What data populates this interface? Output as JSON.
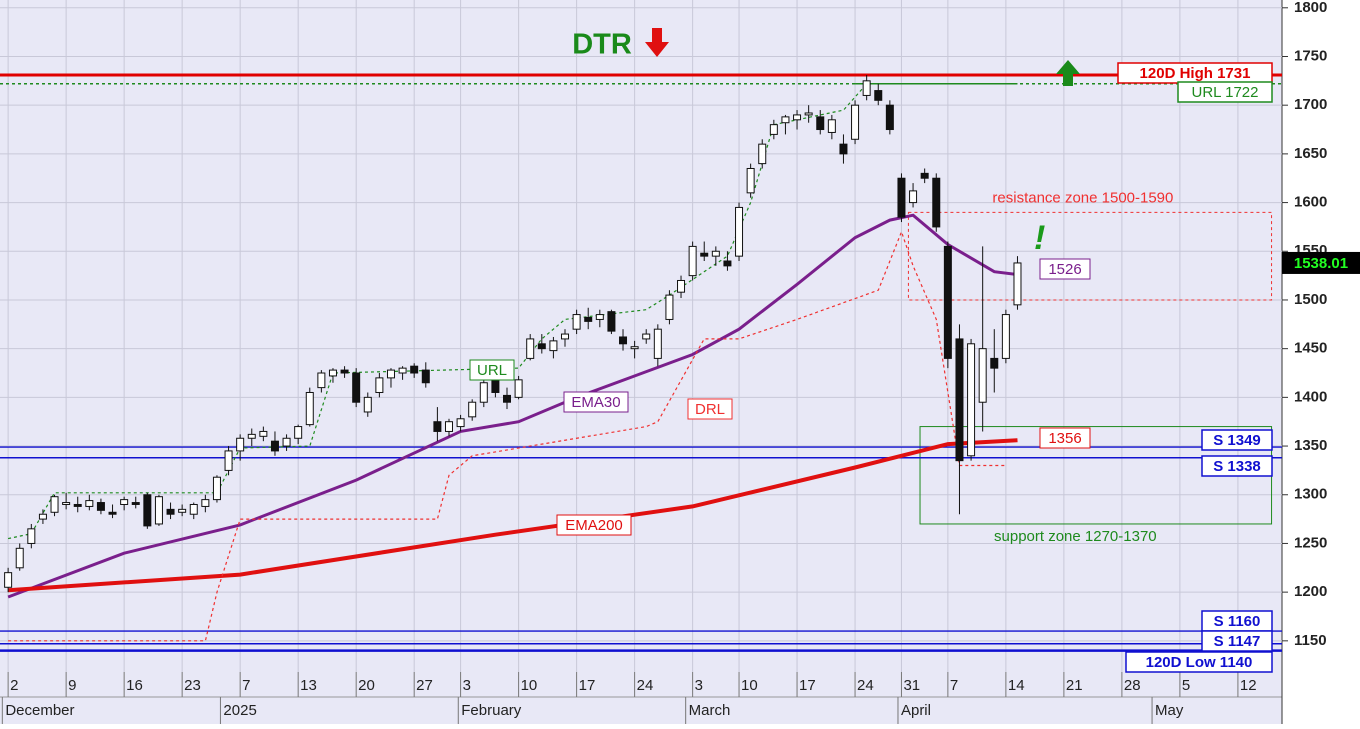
{
  "chart_data": {
    "type": "candlestick",
    "xlim": [
      -0.7,
      109.8
    ],
    "ylim": [
      1118,
      1808
    ],
    "yticks": [
      1150,
      1200,
      1250,
      1300,
      1350,
      1400,
      1450,
      1500,
      1550,
      1600,
      1650,
      1700,
      1750,
      1800
    ],
    "xticks": [
      {
        "value": 0,
        "label": "2"
      },
      {
        "value": 5,
        "label": "9"
      },
      {
        "value": 10,
        "label": "16"
      },
      {
        "value": 15,
        "label": "23"
      },
      {
        "value": 20,
        "label": "7"
      },
      {
        "value": 25,
        "label": "13"
      },
      {
        "value": 30,
        "label": "20"
      },
      {
        "value": 35,
        "label": "27"
      },
      {
        "value": 39,
        "label": "3"
      },
      {
        "value": 44,
        "label": "10"
      },
      {
        "value": 49,
        "label": "17"
      },
      {
        "value": 54,
        "label": "24"
      },
      {
        "value": 59,
        "label": "3"
      },
      {
        "value": 63,
        "label": "10"
      },
      {
        "value": 68,
        "label": "17"
      },
      {
        "value": 73,
        "label": "24"
      },
      {
        "value": 77,
        "label": "31"
      },
      {
        "value": 81,
        "label": "7"
      },
      {
        "value": 86,
        "label": "14"
      },
      {
        "value": 91,
        "label": "21"
      },
      {
        "value": 96,
        "label": "28"
      },
      {
        "value": 101,
        "label": "5"
      },
      {
        "value": 106,
        "label": "12"
      }
    ],
    "month_ticks": [
      {
        "value": -0.5,
        "label": "December"
      },
      {
        "value": 18.3,
        "label": "2025"
      },
      {
        "value": 38.8,
        "label": "February"
      },
      {
        "value": 58.4,
        "label": "March"
      },
      {
        "value": 76.7,
        "label": "April"
      },
      {
        "value": 98.6,
        "label": "May"
      }
    ],
    "grid": true,
    "ohlc": {
      "x": [
        0,
        1,
        2,
        3,
        4,
        5,
        6,
        7,
        8,
        9,
        10,
        11,
        12,
        13,
        14,
        15,
        16,
        17,
        18,
        19,
        20,
        21,
        22,
        23,
        24,
        25,
        26,
        27,
        28,
        29,
        30,
        31,
        32,
        33,
        34,
        35,
        36,
        37,
        38,
        39,
        40,
        41,
        42,
        43,
        44,
        45,
        46,
        47,
        48,
        49,
        50,
        51,
        52,
        53,
        54,
        55,
        56,
        57,
        58,
        59,
        60,
        61,
        62,
        63,
        64,
        65,
        66,
        67,
        68,
        69,
        70,
        71,
        72,
        73,
        74,
        75,
        76,
        77,
        78,
        79,
        80,
        81,
        82,
        83,
        84,
        85,
        86,
        87
      ],
      "open": [
        1205,
        1225,
        1250,
        1275,
        1282,
        1290,
        1290,
        1288,
        1292,
        1282,
        1290,
        1292,
        1300,
        1270,
        1285,
        1282,
        1280,
        1288,
        1295,
        1325,
        1345,
        1358,
        1360,
        1355,
        1350,
        1358,
        1372,
        1410,
        1422,
        1428,
        1425,
        1385,
        1405,
        1420,
        1425,
        1432,
        1428,
        1375,
        1365,
        1370,
        1380,
        1395,
        1418,
        1402,
        1400,
        1440,
        1455,
        1448,
        1460,
        1470,
        1482,
        1480,
        1488,
        1462,
        1450,
        1460,
        1440,
        1480,
        1508,
        1525,
        1548,
        1545,
        1540,
        1545,
        1610,
        1640,
        1670,
        1682,
        1685,
        1690,
        1688,
        1672,
        1660,
        1665,
        1710,
        1715,
        1700,
        1625,
        1600,
        1630,
        1625,
        1555,
        1460,
        1340,
        1395,
        1440,
        1440,
        1495
      ],
      "high": [
        1225,
        1250,
        1270,
        1285,
        1300,
        1302,
        1298,
        1300,
        1296,
        1290,
        1298,
        1298,
        1302,
        1300,
        1292,
        1290,
        1292,
        1300,
        1320,
        1350,
        1362,
        1368,
        1370,
        1365,
        1362,
        1372,
        1410,
        1428,
        1430,
        1432,
        1430,
        1405,
        1425,
        1430,
        1432,
        1435,
        1436,
        1390,
        1378,
        1382,
        1398,
        1420,
        1425,
        1410,
        1422,
        1465,
        1465,
        1462,
        1470,
        1490,
        1492,
        1490,
        1490,
        1470,
        1458,
        1470,
        1475,
        1510,
        1525,
        1560,
        1560,
        1555,
        1550,
        1600,
        1640,
        1665,
        1685,
        1690,
        1695,
        1700,
        1695,
        1690,
        1670,
        1705,
        1731,
        1722,
        1705,
        1630,
        1620,
        1635,
        1630,
        1560,
        1475,
        1460,
        1555,
        1470,
        1490,
        1545
      ],
      "low": [
        1200,
        1222,
        1245,
        1270,
        1278,
        1285,
        1282,
        1284,
        1280,
        1276,
        1284,
        1286,
        1265,
        1268,
        1275,
        1278,
        1275,
        1282,
        1292,
        1320,
        1335,
        1350,
        1355,
        1340,
        1345,
        1352,
        1370,
        1405,
        1415,
        1420,
        1390,
        1380,
        1400,
        1410,
        1418,
        1420,
        1410,
        1355,
        1360,
        1365,
        1376,
        1390,
        1400,
        1388,
        1398,
        1438,
        1445,
        1440,
        1452,
        1465,
        1470,
        1472,
        1465,
        1448,
        1440,
        1455,
        1432,
        1475,
        1502,
        1520,
        1540,
        1535,
        1530,
        1540,
        1605,
        1635,
        1665,
        1670,
        1675,
        1682,
        1670,
        1665,
        1640,
        1660,
        1705,
        1700,
        1670,
        1580,
        1595,
        1620,
        1570,
        1430,
        1280,
        1335,
        1365,
        1405,
        1435,
        1490
      ],
      "close": [
        1220,
        1245,
        1265,
        1280,
        1298,
        1292,
        1288,
        1294,
        1284,
        1280,
        1295,
        1290,
        1268,
        1298,
        1280,
        1285,
        1290,
        1295,
        1318,
        1345,
        1358,
        1362,
        1365,
        1345,
        1358,
        1370,
        1405,
        1425,
        1428,
        1425,
        1395,
        1400,
        1420,
        1428,
        1430,
        1425,
        1415,
        1365,
        1375,
        1378,
        1395,
        1415,
        1405,
        1395,
        1418,
        1460,
        1450,
        1458,
        1465,
        1485,
        1478,
        1485,
        1468,
        1455,
        1452,
        1465,
        1470,
        1505,
        1520,
        1555,
        1545,
        1550,
        1535,
        1595,
        1635,
        1660,
        1680,
        1688,
        1690,
        1692,
        1675,
        1685,
        1650,
        1700,
        1725,
        1705,
        1675,
        1585,
        1612,
        1625,
        1575,
        1440,
        1335,
        1455,
        1450,
        1430,
        1485,
        1538
      ]
    },
    "lines": [
      {
        "name": "EMA30",
        "color": "#7a1f8c",
        "x": [
          0,
          10,
          20,
          30,
          39,
          44,
          49,
          59,
          63,
          68,
          73,
          76,
          78,
          81,
          85,
          87
        ],
        "values": [
          1195,
          1240,
          1269,
          1315,
          1365,
          1375,
          1400,
          1444,
          1470,
          1516,
          1564,
          1582,
          1587,
          1557,
          1529,
          1526
        ],
        "last_value": 1526
      },
      {
        "name": "EMA200",
        "color": "#e01010",
        "x": [
          0,
          20,
          42,
          59,
          73,
          81,
          87
        ],
        "values": [
          1202,
          1218,
          1259,
          1288,
          1328,
          1352,
          1356
        ],
        "last_value": 1356
      },
      {
        "name": "URL",
        "color": "#1e8a1e",
        "x": [
          0,
          2,
          4,
          18,
          20,
          26,
          28,
          44,
          46,
          48,
          55,
          57,
          62,
          64,
          66,
          72,
          74,
          87
        ],
        "values": [
          1255,
          1260,
          1302,
          1302,
          1348,
          1350,
          1425,
          1430,
          1460,
          1480,
          1490,
          1505,
          1545,
          1600,
          1680,
          1695,
          1722,
          1722
        ]
      },
      {
        "name": "DRL",
        "color": "#f03030",
        "x": [
          0,
          17,
          18,
          20,
          37,
          38,
          40,
          55,
          56,
          60,
          63,
          68,
          75,
          76,
          77,
          78,
          80,
          82,
          86
        ],
        "values": [
          1150,
          1150,
          1200,
          1275,
          1275,
          1320,
          1340,
          1370,
          1375,
          1460,
          1460,
          1480,
          1510,
          1540,
          1570,
          1535,
          1480,
          1330,
          1330
        ]
      }
    ],
    "levels": [
      {
        "label": "120D High 1731",
        "value": 1731,
        "color": "#e00000"
      },
      {
        "label": "URL 1722",
        "value": 1722,
        "color": "#1e8a1e"
      },
      {
        "label": "S 1349",
        "value": 1349,
        "color": "#1010d0"
      },
      {
        "label": "S 1338",
        "value": 1338,
        "color": "#1010d0"
      },
      {
        "label": "S 1160",
        "value": 1160,
        "color": "#1010d0"
      },
      {
        "label": "S 1147",
        "value": 1147,
        "color": "#1010d0"
      },
      {
        "label": "120D Low 1140",
        "value": 1140,
        "color": "#1010d0"
      }
    ],
    "zones": [
      {
        "label": "resistance zone 1500-1590",
        "low": 1500,
        "high": 1590,
        "start": 77.6,
        "end": 108.9,
        "color": "#f03030"
      },
      {
        "label": "support zone 1270-1370",
        "low": 1270,
        "high": 1370,
        "start": 78.6,
        "end": 108.9,
        "color": "#1e8a1e"
      }
    ],
    "last_price": 1538.01,
    "annotations": {
      "signal": "DTR",
      "alert": "!"
    }
  }
}
